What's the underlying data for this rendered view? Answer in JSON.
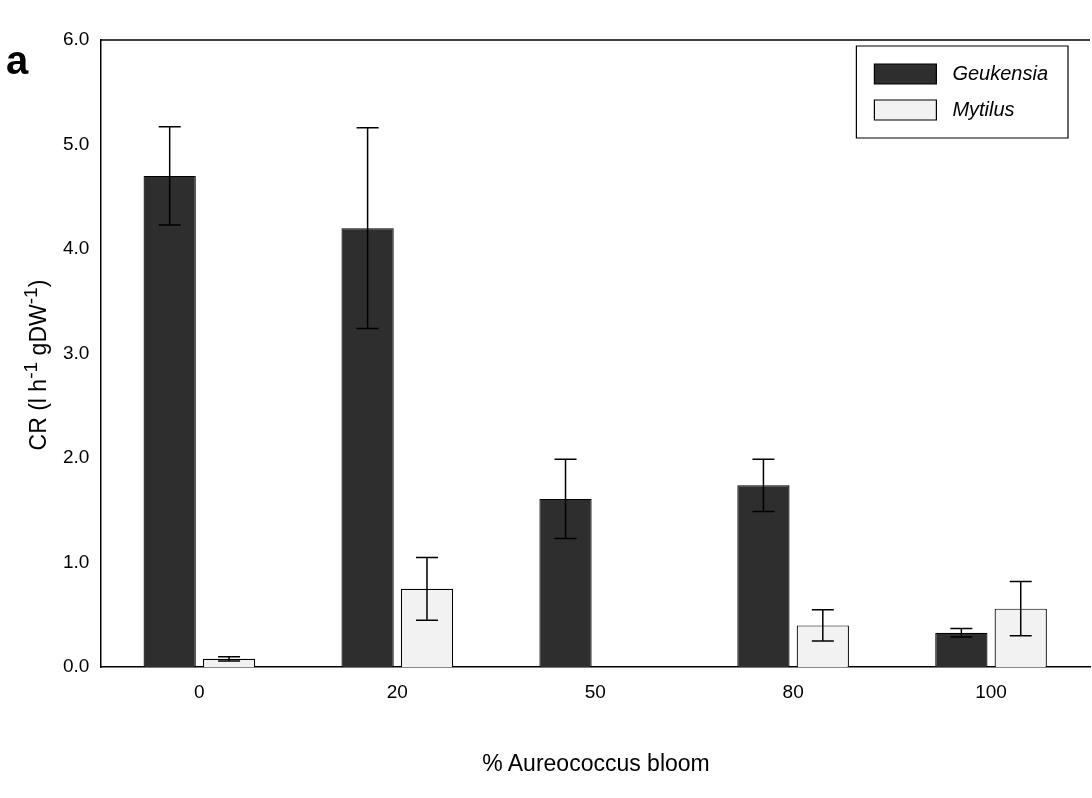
{
  "chart_data": {
    "type": "bar",
    "xlabel": "% Aureococcus bloom",
    "ylabel": "CR (l h$^{-1}$ gDW$^{-1}$)",
    "annotations": [
      "a"
    ],
    "categories": [
      "0",
      "20",
      "50",
      "80",
      "100"
    ],
    "series": [
      {
        "name": "Geukensia",
        "color": "#2e2e2e",
        "values": [
          4.7,
          4.2,
          1.61,
          1.74,
          0.33
        ],
        "errors": [
          0.47,
          0.96,
          0.38,
          0.25,
          0.04
        ]
      },
      {
        "name": "Mytilus",
        "color": "#f2f2f2",
        "values": [
          0.08,
          0.75,
          null,
          0.4,
          0.56
        ],
        "errors": [
          0.02,
          0.3,
          null,
          0.15,
          0.26
        ]
      }
    ],
    "ylim": [
      0,
      6
    ],
    "yticks": [
      {
        "value": 0,
        "label": "0.0"
      },
      {
        "value": 1,
        "label": "1.0"
      },
      {
        "value": 2,
        "label": "2.0"
      },
      {
        "value": 3,
        "label": "3.0"
      },
      {
        "value": 4,
        "label": "4.0"
      },
      {
        "value": 5,
        "label": "5.0"
      },
      {
        "value": 6,
        "label": "6.0"
      }
    ],
    "grid": false,
    "legend": "top right"
  }
}
